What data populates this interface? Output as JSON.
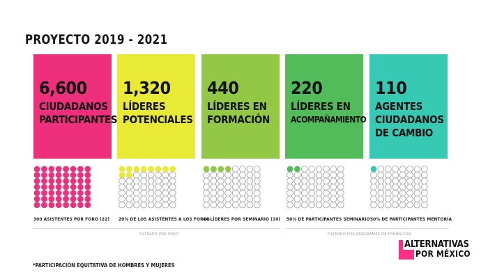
{
  "title": "PROYECTO 2019 - 2021",
  "cards": [
    {
      "number": "6,600",
      "label1": "CIUDADANOS",
      "label2": "PARTICIPANTES",
      "color": "#ee2f7c",
      "filled_color": "#ee2f7c",
      "filled": 56,
      "total": 56,
      "caption": "300 ASISTENTES POR FORO (22)"
    },
    {
      "number": "1,320",
      "label1": "LÍDERES",
      "label2": "POTENCIALES",
      "color": "#e9ea36",
      "filled_color": "#e9ea36",
      "filled": 10,
      "total": 56,
      "caption": "20% DE LOS ASISTENTES A LOS FOROS"
    },
    {
      "number": "440",
      "label1": "LÍDERES EN",
      "label2": "FORMACIÓN",
      "color": "#93c847",
      "filled_color": "#93c847",
      "filled": 4,
      "total": 56,
      "caption": "44 LÍDERES POR SEMINARIO (10)"
    },
    {
      "number": "220",
      "label1": "LÍDERES EN",
      "label2": "ACOMPAÑAMIENTO",
      "color": "#52bb5a",
      "filled_color": "#52bb5a",
      "filled": 2,
      "total": 56,
      "caption": "50% DE PARTICIPANTES SEMINARIO"
    },
    {
      "number": "110",
      "label1": "AGENTES",
      "label2": "CIUDADANOS",
      "label3": "DE CAMBIO",
      "color": "#36c9b4",
      "filled_color": "#36c9b4",
      "filled": 1,
      "total": 56,
      "caption": "50% DE PARTICIPANTES MENTORÍA"
    }
  ],
  "filter_labels": {
    "left": "FILTRADO POR FORO",
    "right": "FILTRADO POR PROGRAMAS DE FORMACIÓN"
  },
  "footnote": "*PARTICIPACIÓN EQUITATIVA DE HOMBRES Y MUJERES",
  "logo": {
    "line1": "ALTERNATIVAS",
    "line2": "POR MÉXICO"
  }
}
